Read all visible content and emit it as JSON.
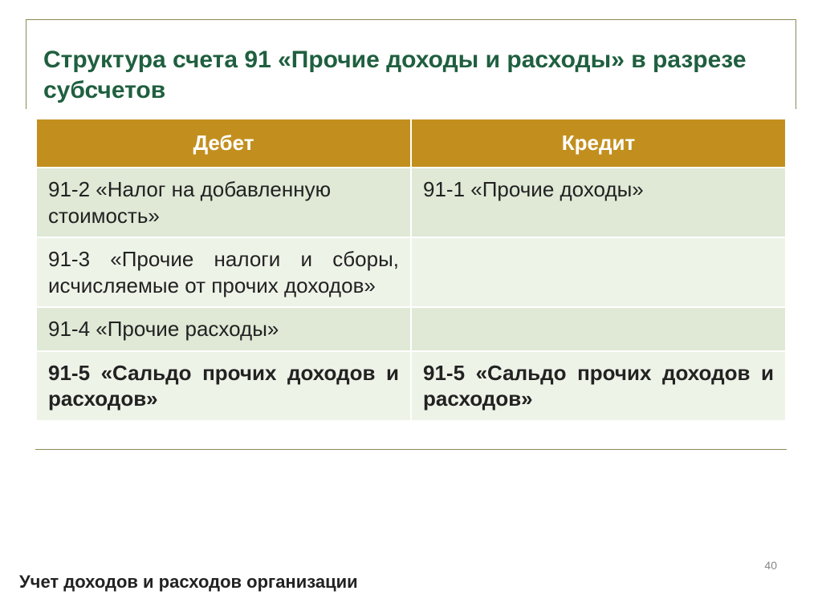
{
  "title": "Структура счета 91 «Прочие доходы и расходы» в разрезе субсчетов",
  "table": {
    "headers": {
      "debit": "Дебет",
      "credit": "Кредит"
    },
    "rows": [
      {
        "debit": "91-2 «Налог на добавленную стоимость»",
        "credit": "91-1 «Прочие доходы»",
        "debit_justify": false,
        "bold": false
      },
      {
        "debit": "91-3 «Прочие налоги и сборы, исчисляемые от прочих доходов»",
        "credit": "",
        "debit_justify": true,
        "bold": false
      },
      {
        "debit": "91-4 «Прочие расходы»",
        "credit": "",
        "debit_justify": false,
        "bold": false
      },
      {
        "debit": "91-5 «Сальдо прочих доходов и расходов»",
        "credit": "91-5 «Сальдо прочих доходов и расходов»",
        "debit_justify": true,
        "bold": true
      }
    ]
  },
  "footer": "Учет доходов и расходов организации",
  "page_number": "40",
  "colors": {
    "title_color": "#1f5f3f",
    "header_bg": "#c28f1f",
    "row_alt1": "#dfe9d6",
    "row_alt2": "#eef3e8",
    "border_accent": "#8a8a55"
  }
}
